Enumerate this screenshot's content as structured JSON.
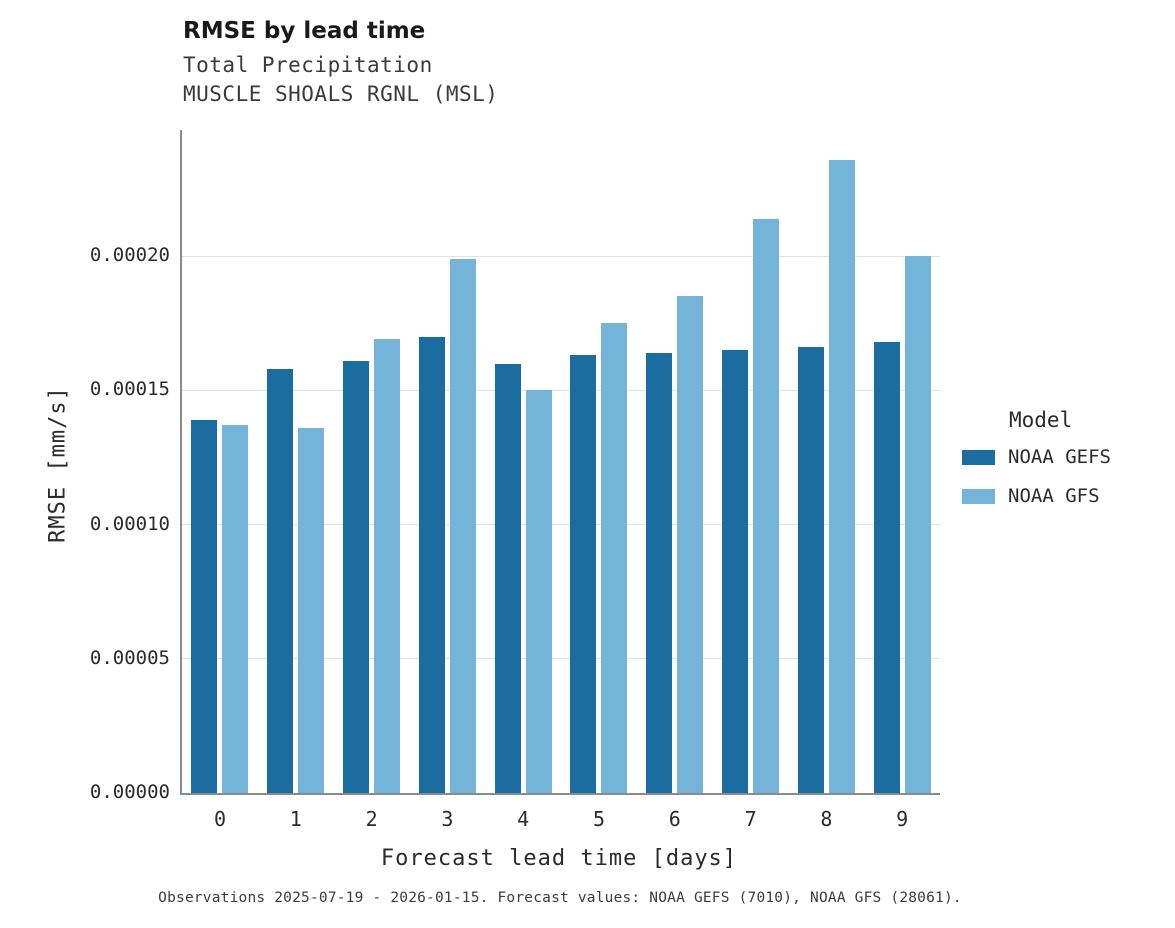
{
  "header": {
    "title": "RMSE by lead time",
    "subtitle1": "Total Precipitation",
    "subtitle2": "MUSCLE SHOALS RGNL (MSL)"
  },
  "legend": {
    "title": "Model",
    "entries": [
      {
        "label": "NOAA GEFS",
        "color": "#1a6d9e"
      },
      {
        "label": "NOAA GFS",
        "color": "#74b4d9"
      }
    ]
  },
  "caption": "Observations 2025-07-19 - 2026-01-15. Forecast values: NOAA GEFS (7010), NOAA GFS (28061).",
  "chart_data": {
    "type": "bar",
    "title": "RMSE by lead time",
    "subtitle": "Total Precipitation — MUSCLE SHOALS RGNL (MSL)",
    "xlabel": "Forecast lead time [days]",
    "ylabel": "RMSE [mm/s]",
    "categories": [
      "0",
      "1",
      "2",
      "3",
      "4",
      "5",
      "6",
      "7",
      "8",
      "9"
    ],
    "series": [
      {
        "name": "NOAA GEFS",
        "color": "#1a6d9e",
        "values": [
          0.000139,
          0.000158,
          0.000161,
          0.00017,
          0.00016,
          0.000163,
          0.000164,
          0.000165,
          0.000166,
          0.000168
        ]
      },
      {
        "name": "NOAA GFS",
        "color": "#74b4d9",
        "values": [
          0.000137,
          0.000136,
          0.000169,
          0.000199,
          0.00015,
          0.000175,
          0.000185,
          0.000214,
          0.000236,
          0.0002
        ]
      }
    ],
    "ylim": [
      0,
      0.000247
    ],
    "yticks": [
      0,
      5e-05,
      0.0001,
      0.00015,
      0.0002
    ],
    "grid": "horizontal",
    "legend_position": "right"
  }
}
